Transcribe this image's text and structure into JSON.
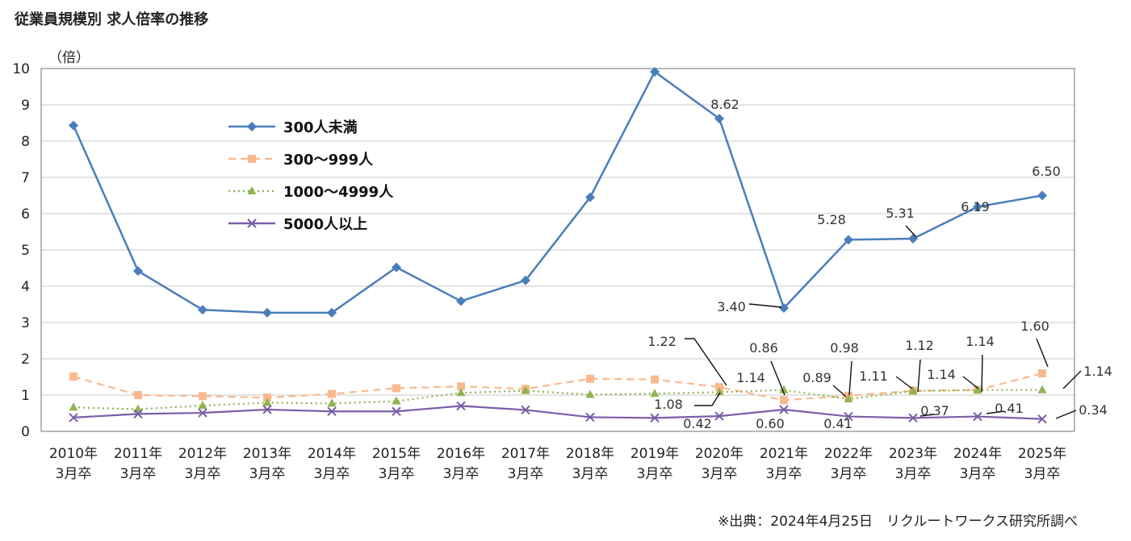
{
  "title": "従業員規模別 求人倍率の推移",
  "source": "※出典：2024年4月25日　リクルートワークス研究所調べ",
  "chart_data": {
    "type": "line",
    "title": "従業員規模別 求人倍率の推移",
    "ylabel": "（倍）",
    "ylim": [
      0,
      10
    ],
    "yticks": [
      "0",
      "1",
      "2",
      "3",
      "4",
      "5",
      "6",
      "7",
      "8",
      "9",
      "10"
    ],
    "grid": true,
    "legend_position": "top-left",
    "categories": [
      [
        "2010年",
        "3月卒"
      ],
      [
        "2011年",
        "3月卒"
      ],
      [
        "2012年",
        "3月卒"
      ],
      [
        "2013年",
        "3月卒"
      ],
      [
        "2014年",
        "3月卒"
      ],
      [
        "2015年",
        "3月卒"
      ],
      [
        "2016年",
        "3月卒"
      ],
      [
        "2017年",
        "3月卒"
      ],
      [
        "2018年",
        "3月卒"
      ],
      [
        "2019年",
        "3月卒"
      ],
      [
        "2020年",
        "3月卒"
      ],
      [
        "2021年",
        "3月卒"
      ],
      [
        "2022年",
        "3月卒"
      ],
      [
        "2023年",
        "3月卒"
      ],
      [
        "2024年",
        "3月卒"
      ],
      [
        "2025年",
        "3月卒"
      ]
    ],
    "series": [
      {
        "name": "300人未満",
        "color": "#4a7ebb",
        "dash": "solid",
        "marker": "diamond",
        "values": [
          8.43,
          4.42,
          3.35,
          3.27,
          3.27,
          4.52,
          3.59,
          4.16,
          6.45,
          9.91,
          8.62,
          3.4,
          5.28,
          5.31,
          6.19,
          6.5
        ]
      },
      {
        "name": "300～999人",
        "color": "#f9b98e",
        "dash": "dashed",
        "marker": "square",
        "values": [
          1.51,
          1.0,
          0.97,
          0.93,
          1.03,
          1.19,
          1.24,
          1.17,
          1.45,
          1.43,
          1.22,
          0.86,
          0.98,
          1.12,
          1.14,
          1.6
        ]
      },
      {
        "name": "1000～4999人",
        "color": "#8fb451",
        "dash": "dotted",
        "marker": "triangle",
        "values": [
          0.66,
          0.61,
          0.71,
          0.79,
          0.77,
          0.83,
          1.06,
          1.12,
          1.01,
          1.04,
          1.08,
          1.14,
          0.89,
          1.11,
          1.14,
          1.14
        ]
      },
      {
        "name": "5000人以上",
        "color": "#7a5ea8",
        "dash": "solid",
        "marker": "x",
        "values": [
          0.38,
          0.48,
          0.51,
          0.6,
          0.55,
          0.55,
          0.7,
          0.59,
          0.39,
          0.37,
          0.42,
          0.6,
          0.41,
          0.37,
          0.41,
          0.34
        ]
      }
    ],
    "data_labels": [
      {
        "text": "8.62",
        "series": 0,
        "index": 10
      },
      {
        "text": "3.40",
        "series": 0,
        "index": 11
      },
      {
        "text": "5.28",
        "series": 0,
        "index": 12
      },
      {
        "text": "5.31",
        "series": 0,
        "index": 13
      },
      {
        "text": "6.19",
        "series": 0,
        "index": 14
      },
      {
        "text": "6.50",
        "series": 0,
        "index": 15
      },
      {
        "text": "1.22",
        "series": 1,
        "index": 10
      },
      {
        "text": "0.86",
        "series": 1,
        "index": 11
      },
      {
        "text": "0.98",
        "series": 1,
        "index": 12
      },
      {
        "text": "1.12",
        "series": 1,
        "index": 13
      },
      {
        "text": "1.14",
        "series": 1,
        "index": 14
      },
      {
        "text": "1.60",
        "series": 1,
        "index": 15
      },
      {
        "text": "1.08",
        "series": 2,
        "index": 10
      },
      {
        "text": "1.14",
        "series": 2,
        "index": 11
      },
      {
        "text": "0.89",
        "series": 2,
        "index": 12
      },
      {
        "text": "1.11",
        "series": 2,
        "index": 13
      },
      {
        "text": "1.14",
        "series": 2,
        "index": 14
      },
      {
        "text": "1.14",
        "series": 2,
        "index": 15
      },
      {
        "text": "0.42",
        "series": 3,
        "index": 10
      },
      {
        "text": "0.60",
        "series": 3,
        "index": 11
      },
      {
        "text": "0.41",
        "series": 3,
        "index": 12
      },
      {
        "text": "0.37",
        "series": 3,
        "index": 13
      },
      {
        "text": "0.41",
        "series": 3,
        "index": 14
      },
      {
        "text": "0.34",
        "series": 3,
        "index": 15
      }
    ]
  }
}
